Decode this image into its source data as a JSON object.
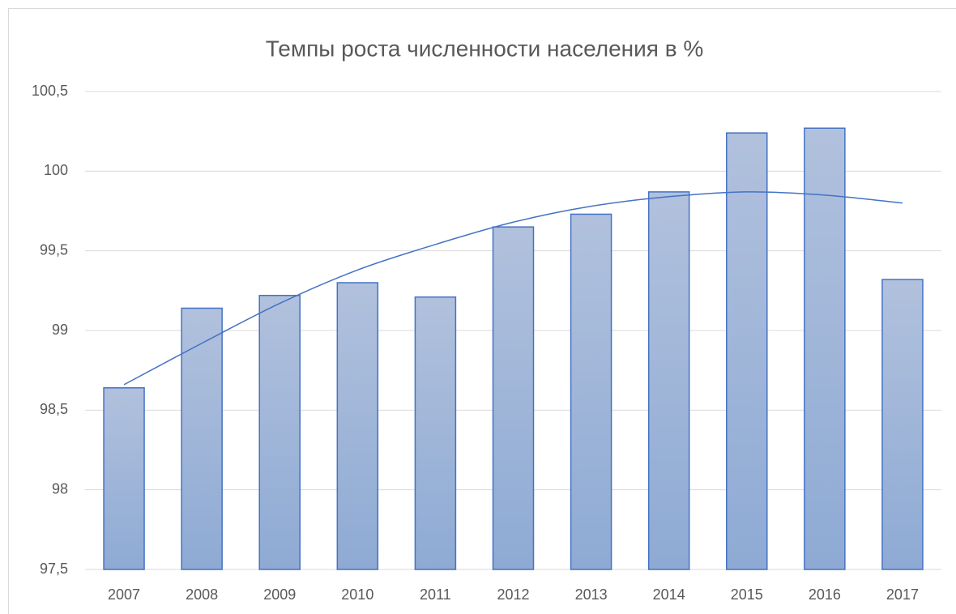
{
  "chart_data": {
    "type": "bar",
    "title": "Темпы роста численности населения в %",
    "categories": [
      "2007",
      "2008",
      "2009",
      "2010",
      "2011",
      "2012",
      "2013",
      "2014",
      "2015",
      "2016",
      "2017"
    ],
    "values": [
      98.64,
      99.14,
      99.22,
      99.3,
      99.21,
      99.65,
      99.73,
      99.87,
      100.24,
      100.27,
      99.32
    ],
    "color": "#4472c4",
    "trendline": {
      "color": "#4472c4",
      "values": [
        98.66,
        98.92,
        99.17,
        99.38,
        99.54,
        99.68,
        99.78,
        99.84,
        99.87,
        99.85,
        99.8
      ]
    },
    "ylim": [
      97.5,
      100.5
    ],
    "yticks": [
      {
        "value": 97.5,
        "label": "97,5"
      },
      98,
      {
        "value": 98.5,
        "label": "98,5"
      },
      99,
      {
        "value": 99.5,
        "label": "99,5"
      },
      100,
      {
        "value": 100.5,
        "label": "100,5"
      }
    ],
    "grid": true
  }
}
